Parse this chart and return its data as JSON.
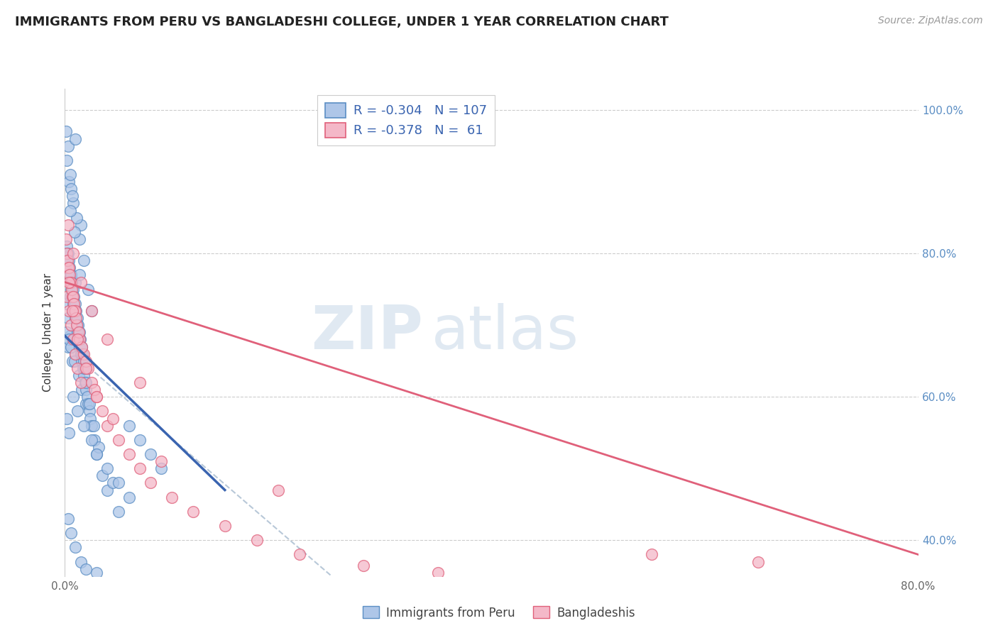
{
  "title": "IMMIGRANTS FROM PERU VS BANGLADESHI COLLEGE, UNDER 1 YEAR CORRELATION CHART",
  "source": "Source: ZipAtlas.com",
  "ylabel": "College, Under 1 year",
  "legend_r1": "R = -0.304",
  "legend_n1": "N = 107",
  "legend_r2": "R = -0.378",
  "legend_n2": "N =  61",
  "legend_label1": "Immigrants from Peru",
  "legend_label2": "Bangladeshis",
  "color_peru": "#aec6e8",
  "color_peru_edge": "#5b8ec4",
  "color_bang": "#f4b8c8",
  "color_bang_edge": "#e0607a",
  "color_peru_line": "#3a64b0",
  "color_bang_line": "#e0607a",
  "color_dashed": "#b8c8d8",
  "watermark_zip": "ZIP",
  "watermark_atlas": "atlas",
  "xlim": [
    0.0,
    80.0
  ],
  "ylim": [
    35.0,
    103.0
  ],
  "grid_color": "#cccccc",
  "background_color": "#ffffff",
  "title_fontsize": 13,
  "source_fontsize": 10,
  "watermark_fontsize_zip": 60,
  "watermark_fontsize_atlas": 60,
  "watermark_color": "#d0dce8",
  "peru_x": [
    0.3,
    0.5,
    0.7,
    1.0,
    1.2,
    0.2,
    0.4,
    0.6,
    0.8,
    1.5,
    0.1,
    0.3,
    0.5,
    0.8,
    1.0,
    0.2,
    0.4,
    0.6,
    0.9,
    1.3,
    1.6,
    2.0,
    0.3,
    0.5,
    0.7,
    1.1,
    1.4,
    1.8,
    2.2,
    2.5,
    0.1,
    0.2,
    0.3,
    0.4,
    0.5,
    0.6,
    0.7,
    0.8,
    0.9,
    1.0,
    1.1,
    1.2,
    1.3,
    1.4,
    1.5,
    1.6,
    1.7,
    1.8,
    1.9,
    2.0,
    2.1,
    2.2,
    2.3,
    2.4,
    2.5,
    2.8,
    3.0,
    3.5,
    4.0,
    5.0,
    0.15,
    0.25,
    0.35,
    0.45,
    0.55,
    0.65,
    0.75,
    0.85,
    0.95,
    1.05,
    1.15,
    1.25,
    1.35,
    1.45,
    1.55,
    1.65,
    1.75,
    1.85,
    2.0,
    2.3,
    2.7,
    3.2,
    4.5,
    0.1,
    1.0,
    6.0,
    7.0,
    8.0,
    9.0,
    0.2,
    0.4,
    0.8,
    1.2,
    1.8,
    2.5,
    3.0,
    4.0,
    5.0,
    6.0,
    0.3,
    0.6,
    1.0,
    1.5,
    2.0,
    3.0,
    0.5,
    0.9,
    1.4
  ],
  "peru_y": [
    67.0,
    68.5,
    65.0,
    66.0,
    70.0,
    93.0,
    90.0,
    89.0,
    87.0,
    84.0,
    73.0,
    71.0,
    74.0,
    72.0,
    76.0,
    69.0,
    68.0,
    67.0,
    65.0,
    63.0,
    61.0,
    59.0,
    95.0,
    91.0,
    88.0,
    85.0,
    82.0,
    79.0,
    75.0,
    72.0,
    78.0,
    79.0,
    80.0,
    77.0,
    76.0,
    75.0,
    74.0,
    73.0,
    72.0,
    71.0,
    70.0,
    69.0,
    68.0,
    67.0,
    66.0,
    65.0,
    64.0,
    63.0,
    62.0,
    61.0,
    60.0,
    59.0,
    58.0,
    57.0,
    56.0,
    54.0,
    52.0,
    49.0,
    47.0,
    44.0,
    81.0,
    80.0,
    79.0,
    78.0,
    77.0,
    76.0,
    75.0,
    74.0,
    73.0,
    72.0,
    71.0,
    70.0,
    69.0,
    68.0,
    67.0,
    66.0,
    65.0,
    64.0,
    62.0,
    59.0,
    56.0,
    53.0,
    48.0,
    97.0,
    96.0,
    56.0,
    54.0,
    52.0,
    50.0,
    57.0,
    55.0,
    60.0,
    58.0,
    56.0,
    54.0,
    52.0,
    50.0,
    48.0,
    46.0,
    43.0,
    41.0,
    39.0,
    37.0,
    36.0,
    35.5,
    86.0,
    83.0,
    77.0
  ],
  "bang_x": [
    0.2,
    0.4,
    0.6,
    0.8,
    1.0,
    1.2,
    1.5,
    0.3,
    0.5,
    0.7,
    0.9,
    1.1,
    1.4,
    1.8,
    2.2,
    2.5,
    3.0,
    3.5,
    4.0,
    5.0,
    6.0,
    7.0,
    8.0,
    10.0,
    12.0,
    15.0,
    18.0,
    22.0,
    28.0,
    35.0,
    0.15,
    0.25,
    0.35,
    0.45,
    0.55,
    0.65,
    0.75,
    0.85,
    0.95,
    1.05,
    1.3,
    1.6,
    2.0,
    2.8,
    4.5,
    9.0,
    20.0,
    0.1,
    0.4,
    0.7,
    1.2,
    2.0,
    3.0,
    0.3,
    0.8,
    1.5,
    2.5,
    4.0,
    7.0,
    55.0,
    65.0
  ],
  "bang_y": [
    74.0,
    72.0,
    70.0,
    68.0,
    66.0,
    64.0,
    62.0,
    78.0,
    76.0,
    74.0,
    72.0,
    70.0,
    68.0,
    66.0,
    64.0,
    62.0,
    60.0,
    58.0,
    56.0,
    54.0,
    52.0,
    50.0,
    48.0,
    46.0,
    44.0,
    42.0,
    40.0,
    38.0,
    36.5,
    35.5,
    80.0,
    79.0,
    78.0,
    77.0,
    76.0,
    75.0,
    74.0,
    73.0,
    72.0,
    71.0,
    69.0,
    67.0,
    65.0,
    61.0,
    57.0,
    51.0,
    47.0,
    82.0,
    76.0,
    72.0,
    68.0,
    64.0,
    60.0,
    84.0,
    80.0,
    76.0,
    72.0,
    68.0,
    62.0,
    38.0,
    37.0
  ],
  "peru_trend_x0": 0.0,
  "peru_trend_y0": 68.5,
  "peru_trend_x1": 15.0,
  "peru_trend_y1": 47.0,
  "bang_trend_x0": 0.0,
  "bang_trend_y0": 76.0,
  "bang_trend_x1": 80.0,
  "bang_trend_y1": 38.0,
  "dashed_trend_x0": 0.0,
  "dashed_trend_y0": 67.0,
  "dashed_trend_x1": 25.0,
  "dashed_trend_y1": 35.0
}
